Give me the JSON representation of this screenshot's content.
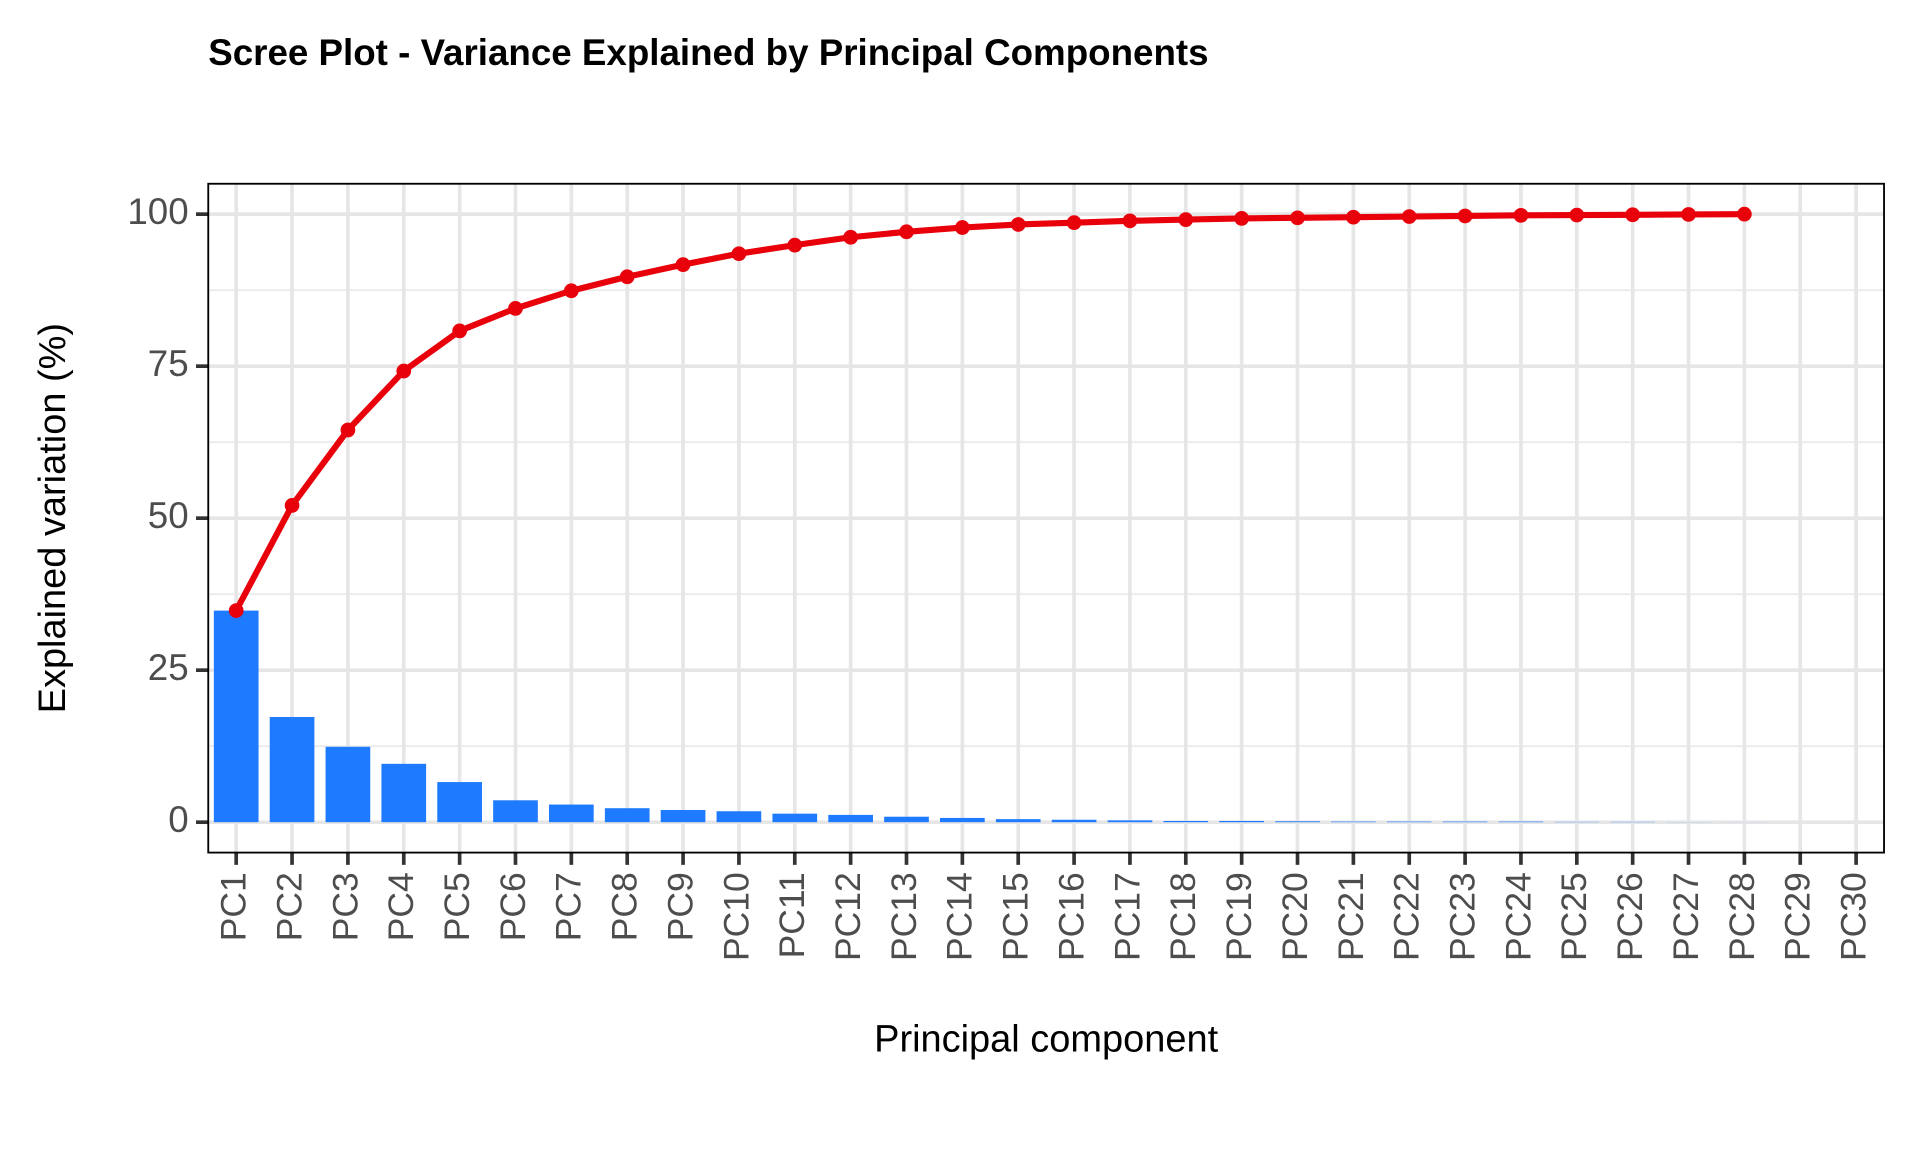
{
  "chart_data": {
    "type": "bar",
    "title": "Scree Plot - Variance Explained by Principal Components",
    "x_label": "Principal component",
    "y_label": "Explained variation (%)",
    "categories": [
      "PC1",
      "PC2",
      "PC3",
      "PC4",
      "PC5",
      "PC6",
      "PC7",
      "PC8",
      "PC9",
      "PC10",
      "PC11",
      "PC12",
      "PC13",
      "PC14",
      "PC15",
      "PC16",
      "PC17",
      "PC18",
      "PC19",
      "PC20",
      "PC21",
      "PC22",
      "PC23",
      "PC24",
      "PC25",
      "PC26",
      "PC27",
      "PC28",
      "PC29",
      "PC30"
    ],
    "series": [
      {
        "type": "bar",
        "color": "#1e7bff",
        "values": [
          34.8,
          17.3,
          12.4,
          9.6,
          6.6,
          3.6,
          2.9,
          2.3,
          2.0,
          1.8,
          1.4,
          1.2,
          0.9,
          0.7,
          0.5,
          0.4,
          0.3,
          0.2,
          0.2,
          0.15,
          0.1,
          0.1,
          0.1,
          0.1,
          0.05,
          0.05,
          0.02,
          0.01,
          null,
          null
        ]
      },
      {
        "type": "line",
        "color": "#e8000b",
        "values": [
          34.8,
          52.1,
          64.5,
          74.2,
          80.8,
          84.5,
          87.4,
          89.7,
          91.7,
          93.5,
          94.9,
          96.2,
          97.1,
          97.8,
          98.3,
          98.6,
          98.9,
          99.1,
          99.3,
          99.4,
          99.5,
          99.6,
          99.7,
          99.8,
          99.85,
          99.9,
          99.95,
          100,
          null,
          null
        ]
      }
    ],
    "ylim": [
      -5,
      105
    ],
    "yticks": [
      0,
      25,
      50,
      75,
      100
    ],
    "grid": true
  }
}
